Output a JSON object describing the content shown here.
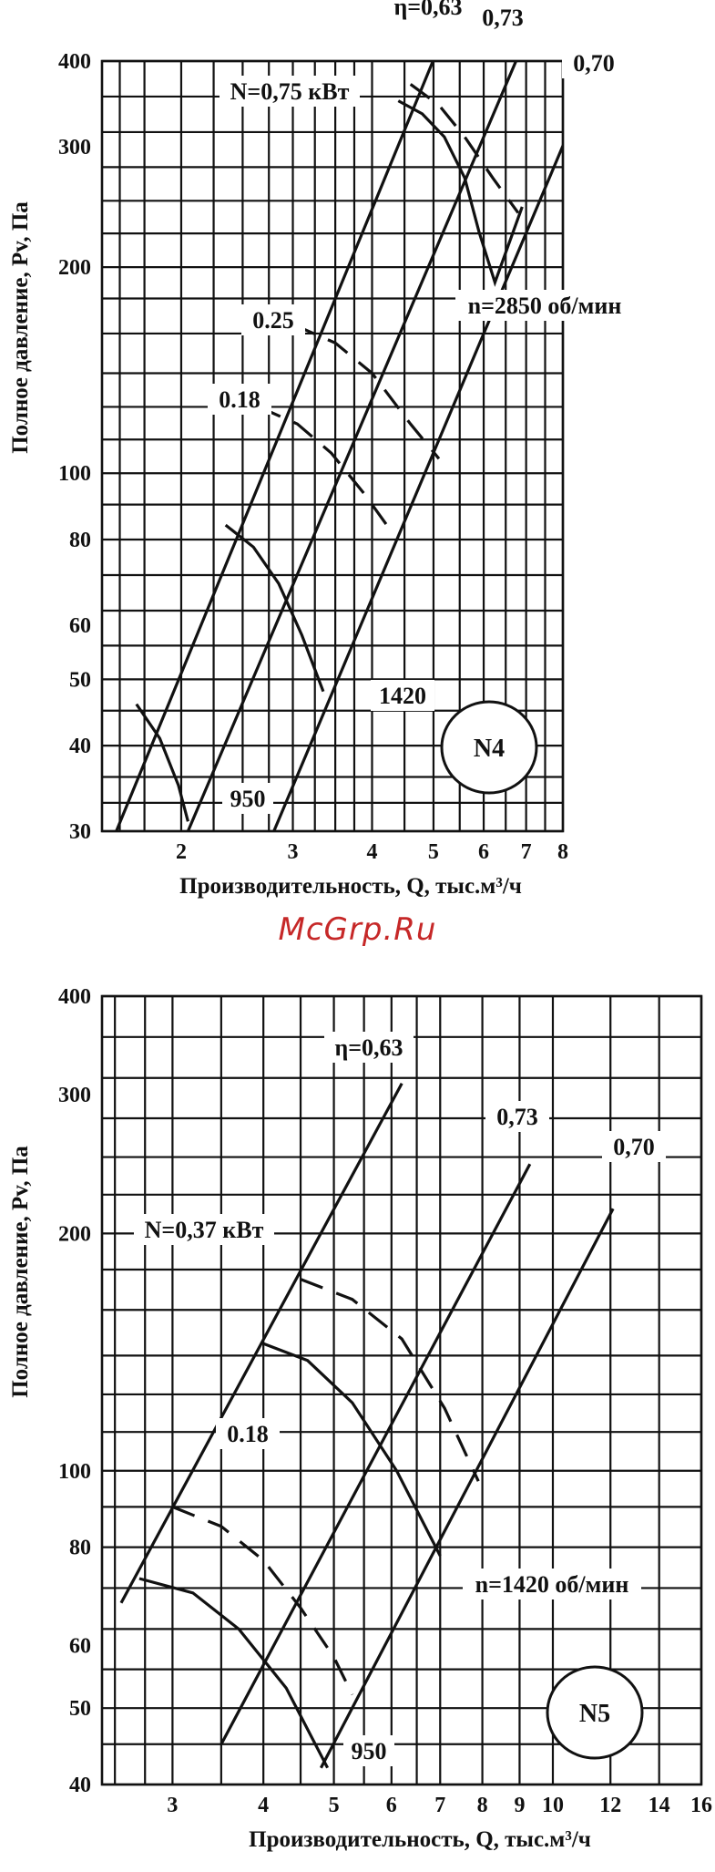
{
  "watermark": "McGrp.Ru",
  "chart_data": [
    {
      "type": "line",
      "scale": "log-log",
      "badge": "N4",
      "xlabel": "Производительность, Q, тыс.м³/ч",
      "ylabel": "Полное давление, Pv, Па",
      "xlim": [
        1.5,
        8
      ],
      "ylim": [
        30,
        400
      ],
      "xticks": [
        2,
        3,
        4,
        5,
        6,
        7,
        8
      ],
      "yticks": [
        30,
        40,
        50,
        60,
        80,
        100,
        200,
        300,
        400
      ],
      "grid_x": [
        1.6,
        1.75,
        2,
        2.25,
        2.5,
        2.75,
        3,
        3.25,
        3.5,
        3.75,
        4,
        4.5,
        5,
        5.5,
        6,
        6.5,
        7,
        7.5,
        8
      ],
      "grid_y": [
        30,
        33,
        36,
        40,
        45,
        50,
        56,
        63,
        71,
        80,
        90,
        100,
        112,
        125,
        140,
        160,
        180,
        200,
        224,
        250,
        280,
        315,
        355,
        400
      ],
      "efficiency_lines": [
        {
          "label": "η=0,63",
          "points": [
            [
              1.58,
              30
            ],
            [
              5.1,
              420
            ]
          ]
        },
        {
          "label": "0,73",
          "points": [
            [
              2.05,
              30
            ],
            [
              6.9,
              420
            ]
          ]
        },
        {
          "label": "0,70",
          "points": [
            [
              2.8,
              30
            ],
            [
              8.9,
              380
            ]
          ]
        }
      ],
      "speed_curves": [
        {
          "label": "n=2850 об/мин",
          "points": [
            [
              4.4,
              350
            ],
            [
              4.8,
              335
            ],
            [
              5.2,
              310
            ],
            [
              5.6,
              270
            ],
            [
              5.9,
              225
            ],
            [
              6.25,
              190
            ],
            [
              6.5,
              210
            ],
            [
              6.9,
              245
            ]
          ],
          "dashed_from": 5.3
        },
        {
          "label": "1420",
          "points": [
            [
              2.35,
              84
            ],
            [
              2.6,
              78
            ],
            [
              2.85,
              69
            ],
            [
              3.1,
              58
            ],
            [
              3.35,
              48
            ]
          ]
        },
        {
          "label": "950",
          "points": [
            [
              1.7,
              46
            ],
            [
              1.85,
              41
            ],
            [
              1.98,
              35
            ],
            [
              2.05,
              31
            ]
          ]
        }
      ],
      "power_curves": [
        {
          "label": "N=0,75 кВт",
          "points": [
            [
              4.6,
              370
            ],
            [
              5.1,
              345
            ],
            [
              5.6,
              310
            ],
            [
              6.2,
              270
            ],
            [
              6.8,
              240
            ]
          ]
        },
        {
          "label": "0.25",
          "points": [
            [
              3.0,
              165
            ],
            [
              3.5,
              155
            ],
            [
              4.0,
              140
            ],
            [
              4.6,
              118
            ],
            [
              5.1,
              105
            ]
          ]
        },
        {
          "label": "0.18",
          "points": [
            [
              2.65,
              125
            ],
            [
              3.05,
              118
            ],
            [
              3.45,
              107
            ],
            [
              3.9,
              93
            ],
            [
              4.3,
              82
            ]
          ]
        }
      ]
    },
    {
      "type": "line",
      "scale": "log-log",
      "badge": "N5",
      "xlabel": "Производительность, Q, тыс.м³/ч",
      "ylabel": "Полное давление, Pv, Па",
      "xlim": [
        2.4,
        16
      ],
      "ylim": [
        40,
        400
      ],
      "xticks": [
        3,
        4,
        5,
        6,
        7,
        8,
        9,
        10,
        12,
        14,
        16
      ],
      "yticks": [
        40,
        50,
        60,
        80,
        100,
        200,
        300,
        400
      ],
      "grid_x": [
        2.5,
        2.75,
        3,
        3.5,
        4,
        4.5,
        5,
        5.5,
        6,
        6.5,
        7,
        8,
        9,
        10,
        12,
        14,
        16
      ],
      "grid_y": [
        40,
        45,
        50,
        56,
        63,
        71,
        80,
        90,
        100,
        112,
        125,
        140,
        160,
        180,
        200,
        224,
        250,
        280,
        315,
        355,
        400
      ],
      "efficiency_lines": [
        {
          "label": "η=0,63",
          "points": [
            [
              2.55,
              68
            ],
            [
              6.2,
              310
            ]
          ]
        },
        {
          "label": "0,73",
          "points": [
            [
              3.5,
              45
            ],
            [
              9.3,
              245
            ]
          ]
        },
        {
          "label": "0,70",
          "points": [
            [
              4.8,
              42
            ],
            [
              12.1,
              215
            ]
          ]
        }
      ],
      "speed_curves": [
        {
          "label": "n=1420 об/мин",
          "points": [
            [
              4.0,
              145
            ],
            [
              4.6,
              138
            ],
            [
              5.3,
              122
            ],
            [
              6.1,
              100
            ],
            [
              7.0,
              78
            ]
          ]
        },
        {
          "label": "950",
          "points": [
            [
              2.7,
              73
            ],
            [
              3.2,
              70
            ],
            [
              3.7,
              63
            ],
            [
              4.3,
              53
            ],
            [
              4.9,
              42
            ]
          ]
        }
      ],
      "power_curves": [
        {
          "label": "N=0,37 кВт",
          "points": [
            [
              4.5,
              175
            ],
            [
              5.3,
              165
            ],
            [
              6.2,
              147
            ],
            [
              7.1,
              120
            ],
            [
              7.9,
              97
            ]
          ]
        },
        {
          "label": "0.18",
          "points": [
            [
              3.0,
              90
            ],
            [
              3.5,
              85
            ],
            [
              4.0,
              77
            ],
            [
              4.5,
              67
            ],
            [
              5.0,
              58
            ],
            [
              5.3,
              52
            ]
          ]
        }
      ]
    }
  ]
}
